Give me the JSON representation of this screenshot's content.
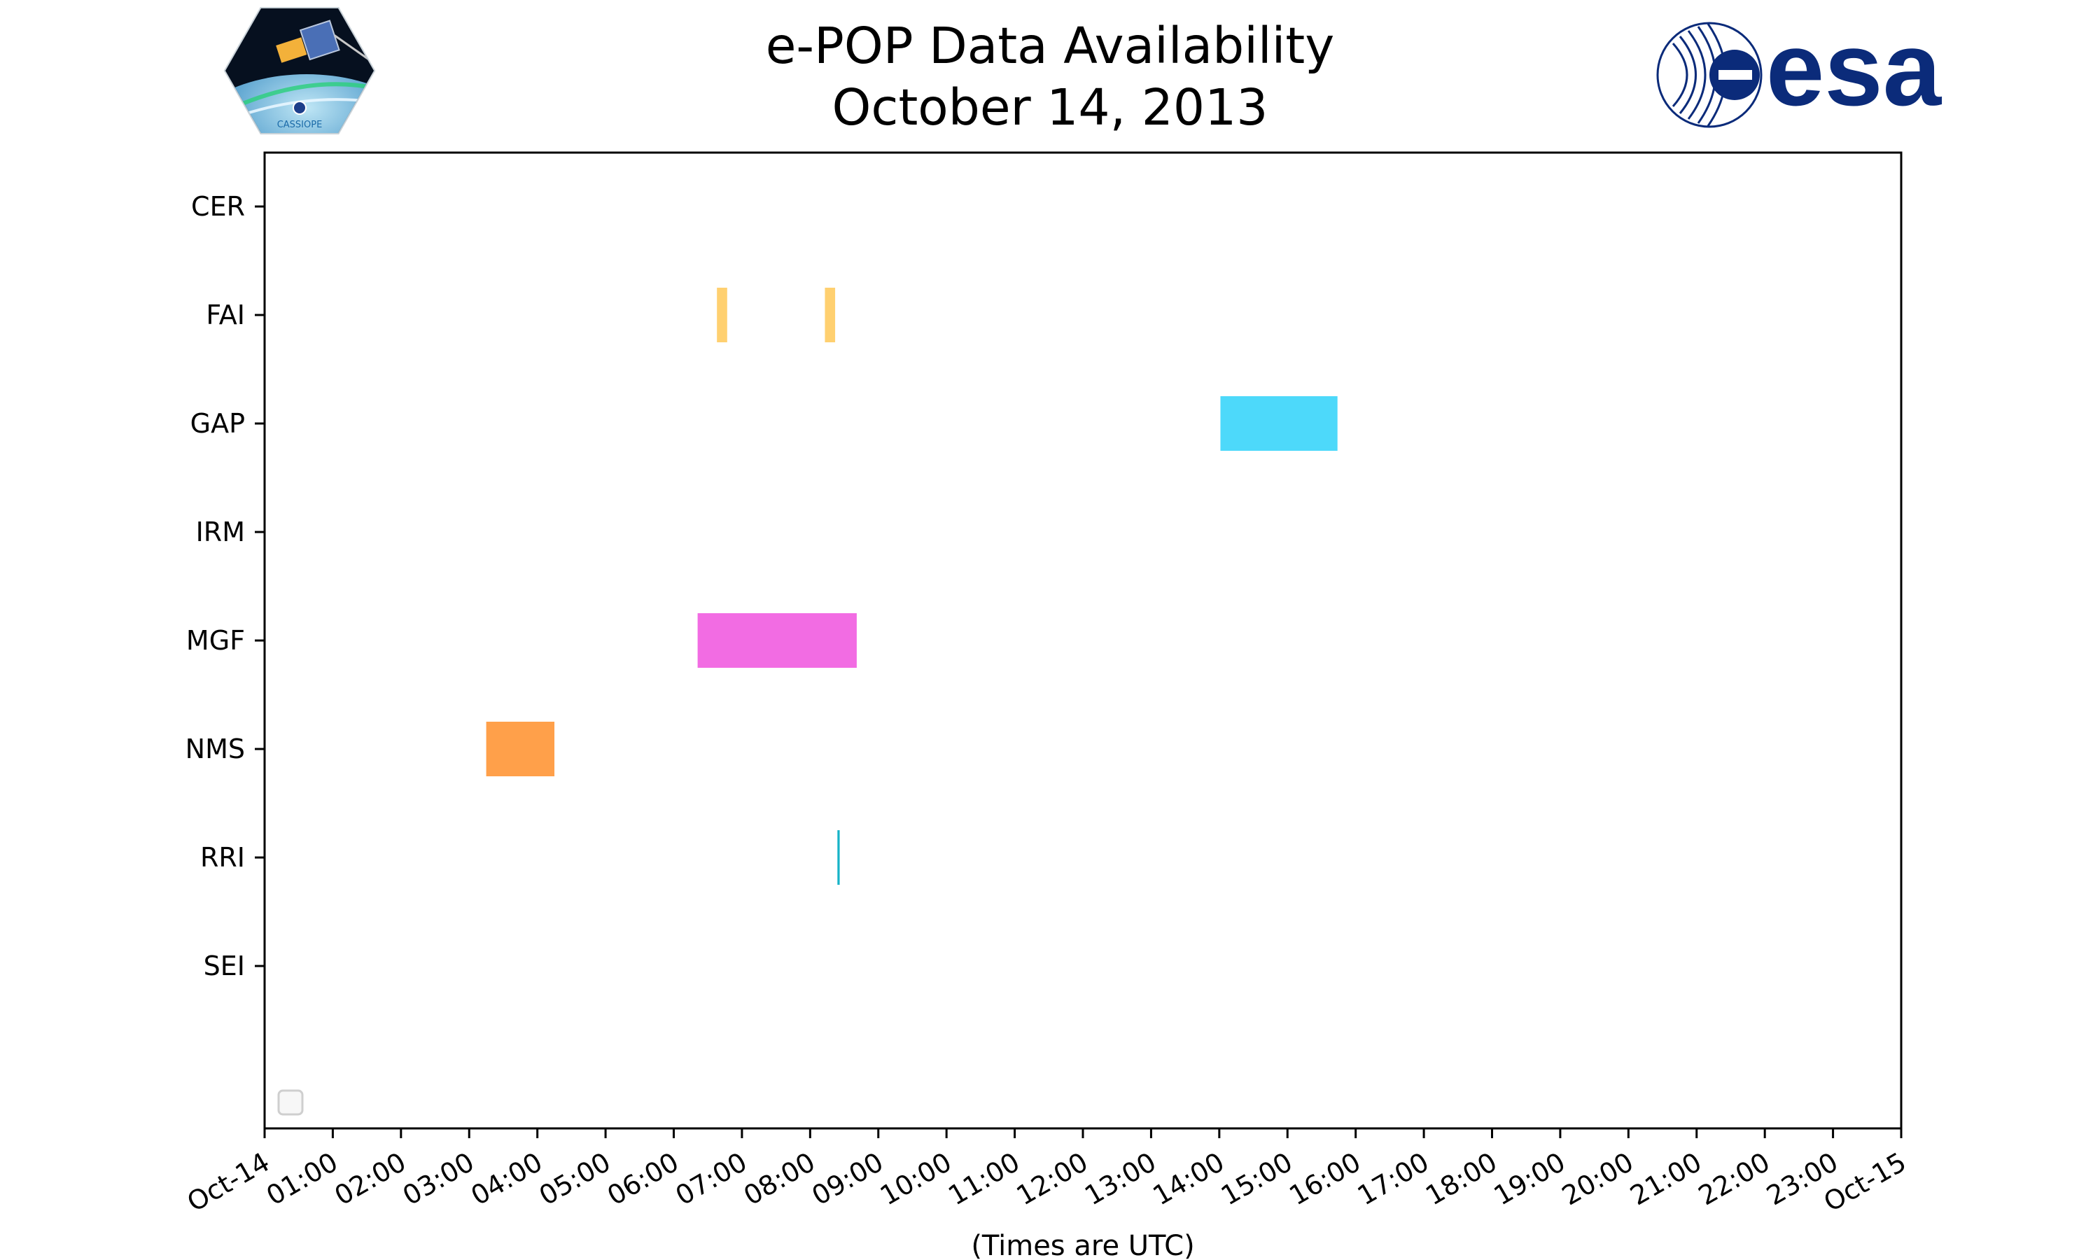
{
  "title": {
    "line1": "e-POP Data Availability",
    "line2": "October 14, 2013"
  },
  "logos": {
    "left": {
      "name": "cassiope-mission-logo",
      "text": "CASSIOPE"
    },
    "right": {
      "name": "esa-logo",
      "text": "esa"
    }
  },
  "colors": {
    "axis": "#000000",
    "FAI": "#ffd070",
    "GAP": "#4dd9fa",
    "MGF": "#f26ce3",
    "NMS": "#ffa04a",
    "RRI": "#17b3c8",
    "esa_blue": "#0b2b7a"
  },
  "chart_data": {
    "type": "timeline",
    "xlabel": "(Times are UTC)",
    "x_range": [
      "2013-10-14 00:00",
      "2013-10-15 00:00"
    ],
    "x_tick_labels": [
      "Oct-14",
      "01:00",
      "02:00",
      "03:00",
      "04:00",
      "05:00",
      "06:00",
      "07:00",
      "08:00",
      "09:00",
      "10:00",
      "11:00",
      "12:00",
      "13:00",
      "14:00",
      "15:00",
      "16:00",
      "17:00",
      "18:00",
      "19:00",
      "20:00",
      "21:00",
      "22:00",
      "23:00",
      "Oct-15"
    ],
    "instruments": [
      "CER",
      "FAI",
      "GAP",
      "IRM",
      "MGF",
      "NMS",
      "RRI",
      "SEI"
    ],
    "intervals": [
      {
        "instrument": "FAI",
        "start": "06:38",
        "end": "06:47"
      },
      {
        "instrument": "FAI",
        "start": "08:13",
        "end": "08:22"
      },
      {
        "instrument": "GAP",
        "start": "14:01",
        "end": "15:44"
      },
      {
        "instrument": "MGF",
        "start": "06:21",
        "end": "08:41"
      },
      {
        "instrument": "NMS",
        "start": "03:15",
        "end": "04:15"
      },
      {
        "instrument": "RRI",
        "start": "08:24",
        "end": "08:26"
      }
    ],
    "grid": false,
    "legend": "bottom-left (empty)"
  }
}
